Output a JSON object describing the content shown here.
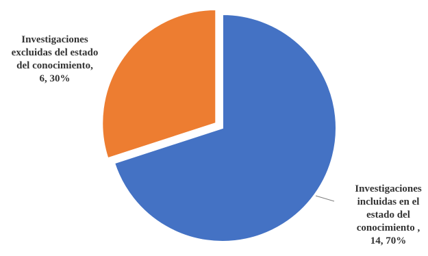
{
  "chart_data": {
    "type": "pie",
    "title": "",
    "slices": [
      {
        "label_lines": [
          "Investigaciones",
          "excluidas del estado",
          "del conocimiento,",
          "6, 30%"
        ],
        "value": 6,
        "percent": 30,
        "color": "#ED7D31",
        "exploded": true
      },
      {
        "label_lines": [
          "Investigaciones",
          "incluidas  en el",
          "estado del",
          "conocimiento ,",
          "14, 70%"
        ],
        "value": 14,
        "percent": 70,
        "color": "#4472C4",
        "exploded": false
      }
    ],
    "legend": "none"
  }
}
